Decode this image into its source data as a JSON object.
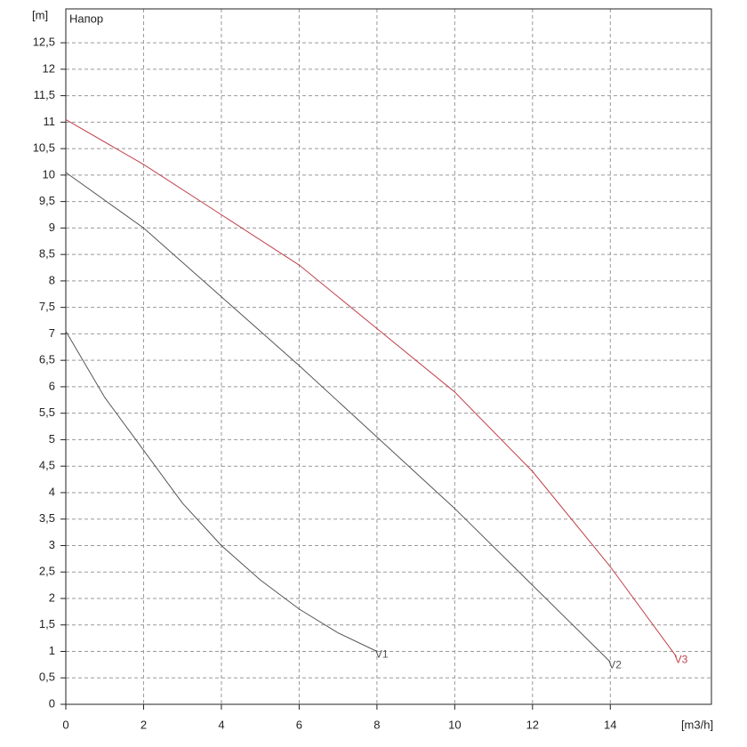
{
  "chart_data": {
    "type": "line",
    "title": "Напор",
    "y_label": "[m]",
    "x_label": "[m3/h]",
    "xlim": [
      0,
      16.6
    ],
    "ylim": [
      0,
      13.14
    ],
    "xticks": [
      0,
      2,
      4,
      6,
      8,
      10,
      12,
      14
    ],
    "yticks": [
      0,
      {
        "value": 0.5,
        "label": "0,5"
      },
      1,
      {
        "value": 1.5,
        "label": "1,5"
      },
      2,
      {
        "value": 2.5,
        "label": "2,5"
      },
      3,
      {
        "value": 3.5,
        "label": "3,5"
      },
      4,
      {
        "value": 4.5,
        "label": "4,5"
      },
      5,
      {
        "value": 5.5,
        "label": "5,5"
      },
      6,
      {
        "value": 6.5,
        "label": "6,5"
      },
      7,
      {
        "value": 7.5,
        "label": "7,5"
      },
      8,
      {
        "value": 8.5,
        "label": "8,5"
      },
      9,
      {
        "value": 9.5,
        "label": "9,5"
      },
      10,
      {
        "value": 10.5,
        "label": "10,5"
      },
      11,
      {
        "value": 11.5,
        "label": "11,5"
      },
      12,
      {
        "value": 12.5,
        "label": "12,5"
      }
    ],
    "grid": true,
    "series": [
      {
        "name": "V1",
        "color": "#555555",
        "x": [
          0,
          1,
          2,
          3,
          4,
          5,
          6,
          7,
          8
        ],
        "values": [
          7.05,
          5.8,
          4.8,
          3.8,
          3.0,
          2.35,
          1.8,
          1.35,
          1.0
        ]
      },
      {
        "name": "V2",
        "color": "#555555",
        "x": [
          0,
          2,
          4,
          6,
          8,
          10,
          12,
          14
        ],
        "values": [
          10.05,
          9.0,
          7.7,
          6.4,
          5.05,
          3.7,
          2.25,
          0.8
        ]
      },
      {
        "name": "V3",
        "color": "#c0404a",
        "x": [
          0,
          2,
          4,
          6,
          8,
          10,
          12,
          14,
          15.7
        ],
        "values": [
          11.05,
          10.2,
          9.25,
          8.3,
          7.1,
          5.9,
          4.4,
          2.6,
          0.9
        ]
      }
    ]
  }
}
